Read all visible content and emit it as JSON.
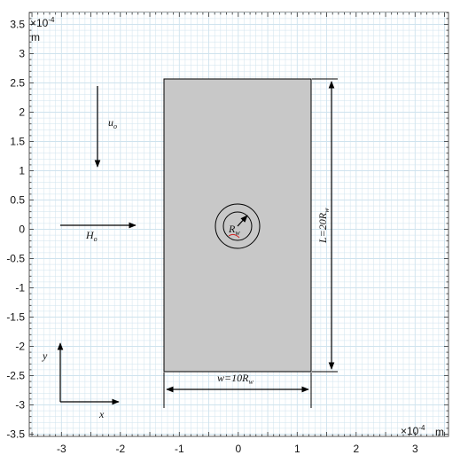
{
  "axes": {
    "x_ticks": [
      "-3",
      "-2",
      "-1",
      "0",
      "1",
      "2",
      "3"
    ],
    "y_ticks": [
      "3.5",
      "3",
      "2.5",
      "2",
      "1.5",
      "1",
      "0.5",
      "0",
      "-0.5",
      "-1",
      "-1.5",
      "-2",
      "-2.5",
      "-3",
      "-3.5"
    ],
    "x_exponent": "×10",
    "x_exponent_power": "-4",
    "x_unit": "m",
    "y_exponent": "×10",
    "y_exponent_power": "-4",
    "y_unit": "m"
  },
  "labels": {
    "velocity": "u",
    "velocity_sub": "o",
    "field": "H",
    "field_sub": "o",
    "radius": "R",
    "radius_sub": "w",
    "width": "w=10R",
    "width_sub": "w",
    "length": "L=20R",
    "length_sub": "w",
    "axis_x": "x",
    "axis_y": "y"
  },
  "colors": {
    "background": "#ffffff",
    "grid": "#cfe3ee",
    "domain_fill": "#c8c8c8",
    "wire_arc": "#d02020"
  }
}
